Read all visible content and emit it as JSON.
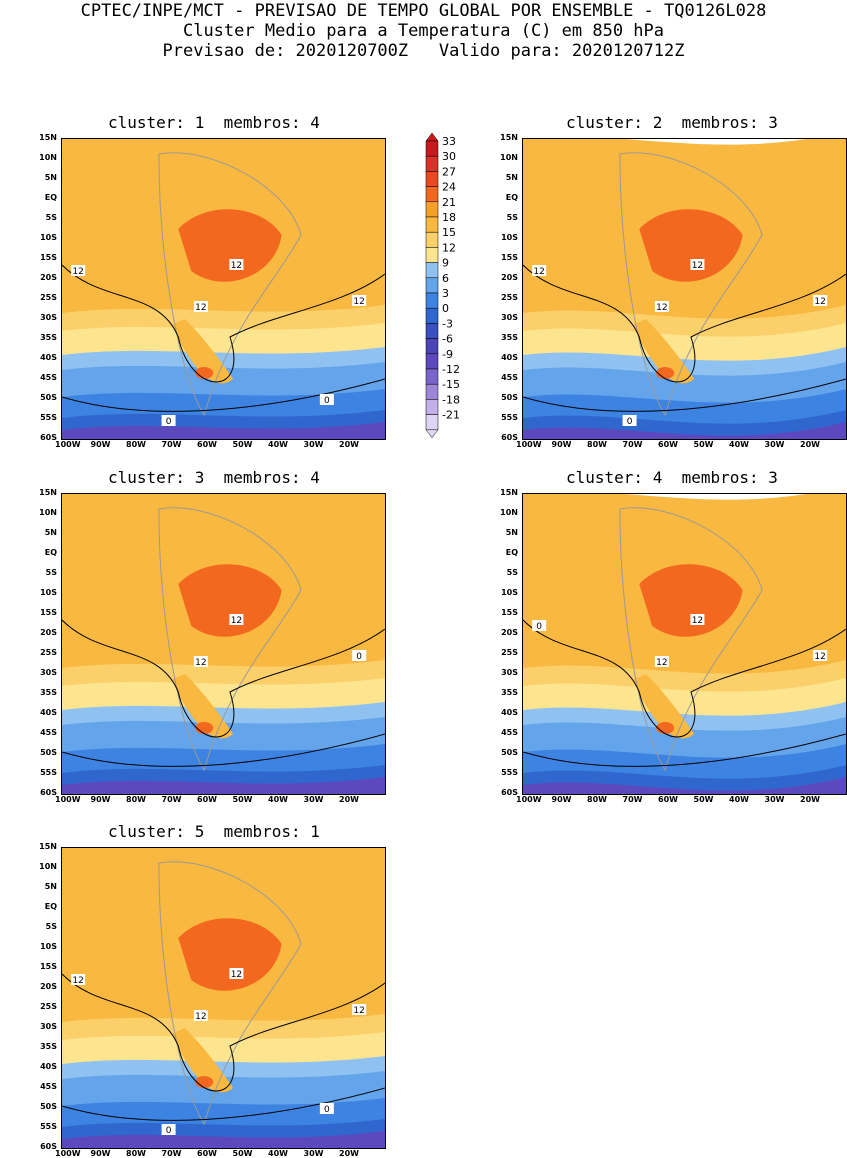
{
  "header": {
    "line1": "CPTEC/INPE/MCT - PREVISAO DE TEMPO GLOBAL POR ENSEMBLE - TQ0126L028",
    "line2": "Cluster Medio para a Temperatura (C) em 850 hPa",
    "line3": "Previsao de: 2020120700Z   Valido para: 2020120712Z"
  },
  "panels": [
    {
      "title": "cluster: 1  membros: 4",
      "contour_labels": [
        "12",
        "12",
        "12",
        "12",
        "0",
        "0"
      ]
    },
    {
      "title": "cluster: 2  membros: 3",
      "contour_labels": [
        "12",
        "12",
        "12",
        "12",
        "0"
      ]
    },
    {
      "title": "cluster: 3  membros: 4",
      "contour_labels": [
        "12",
        "12",
        "0"
      ]
    },
    {
      "title": "cluster: 4  membros: 3",
      "contour_labels": [
        "12",
        "12",
        "12",
        "0"
      ]
    },
    {
      "title": "cluster: 5  membros: 1",
      "contour_labels": [
        "12",
        "12",
        "12",
        "12",
        "0",
        "0"
      ]
    }
  ],
  "lat_labels": [
    "15N",
    "10N",
    "5N",
    "EQ",
    "5S",
    "10S",
    "15S",
    "20S",
    "25S",
    "30S",
    "35S",
    "40S",
    "45S",
    "50S",
    "55S",
    "60S"
  ],
  "lon_labels": [
    "100W",
    "90W",
    "80W",
    "70W",
    "60W",
    "50W",
    "40W",
    "30W",
    "20W"
  ],
  "colorbar": {
    "labels": [
      "33",
      "30",
      "27",
      "24",
      "21",
      "18",
      "15",
      "12",
      "9",
      "6",
      "3",
      "0",
      "-3",
      "-6",
      "-9",
      "-12",
      "-15",
      "-18",
      "-21"
    ],
    "colors": [
      "#c81a1e",
      "#d8322a",
      "#ea4a22",
      "#f3681f",
      "#f6a02a",
      "#f9b83f",
      "#fbd06a",
      "#fde58f",
      "#8fc2f0",
      "#63a4ea",
      "#3c83e2",
      "#2f67cf",
      "#3a4fc0",
      "#4a44b6",
      "#5d49be",
      "#7a64ca",
      "#9b86d8",
      "#c1b1e8",
      "#ddd5f3"
    ]
  }
}
